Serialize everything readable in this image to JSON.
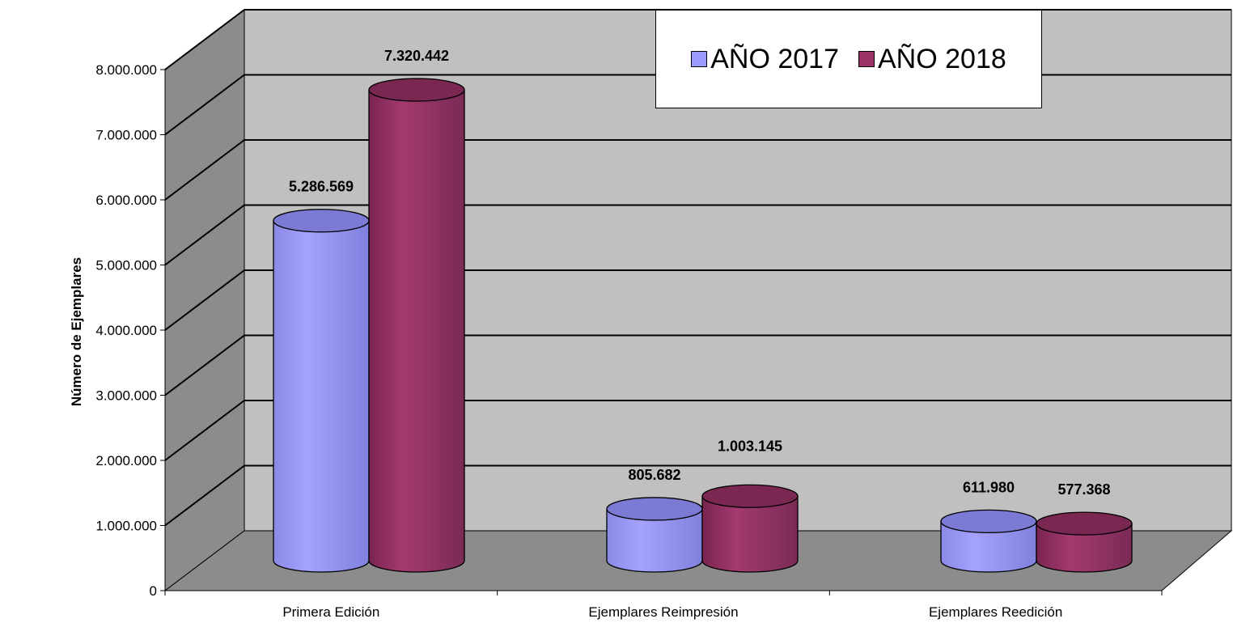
{
  "chart_data": {
    "type": "bar",
    "title": "",
    "xlabel": "",
    "ylabel": "Número de Ejemplares",
    "ylim": [
      0,
      8000000
    ],
    "yticks": [
      "0",
      "1.000.000",
      "2.000.000",
      "3.000.000",
      "4.000.000",
      "5.000.000",
      "6.000.000",
      "7.000.000",
      "8.000.000"
    ],
    "categories": [
      "Primera Edición",
      "Ejemplares Reimpresión",
      "Ejemplares Reedición"
    ],
    "grid": true,
    "legend_position": "top-right",
    "series": [
      {
        "name": "AÑO 2017",
        "color": "#9999ff",
        "values": [
          5286569,
          805682,
          611980
        ],
        "labels": [
          "5.286.569",
          "805.682",
          "611.980"
        ]
      },
      {
        "name": "AÑO 2018",
        "color": "#993366",
        "values": [
          7320442,
          1003145,
          577368
        ],
        "labels": [
          "7.320.442",
          "1.003.145",
          "577.368"
        ]
      }
    ]
  }
}
